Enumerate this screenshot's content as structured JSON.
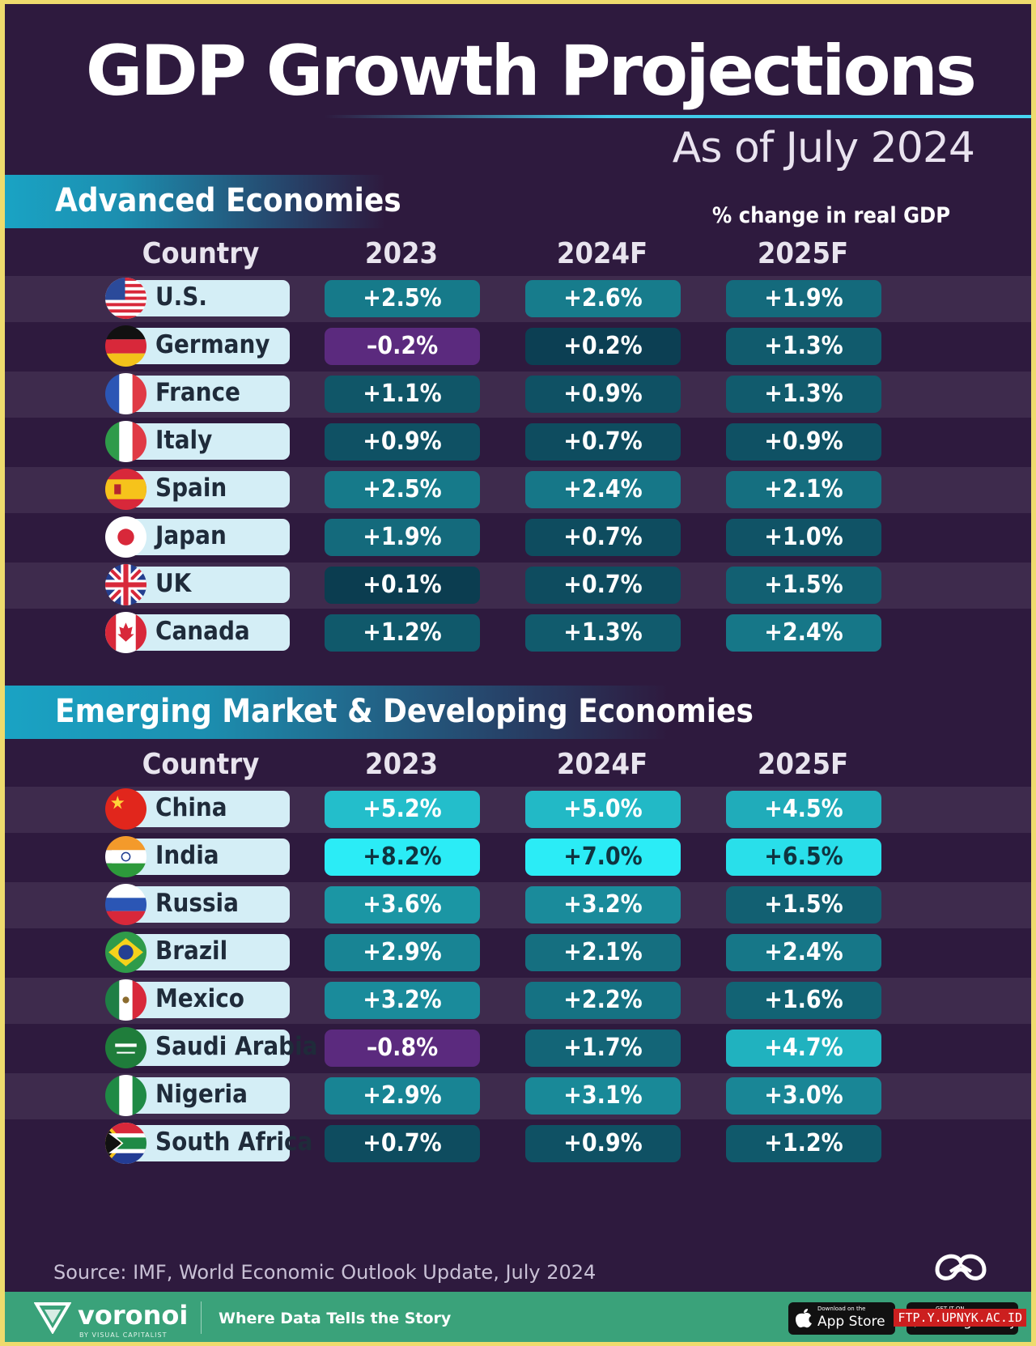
{
  "header": {
    "title": "GDP Growth Projections",
    "subtitle": "As of July 2024",
    "note": "% change in real GDP"
  },
  "footer": {
    "source": "Source: IMF, World Economic Outlook Update, July 2024",
    "brand": "voronoi",
    "brand_sub": "BY VISUAL CAPITALIST",
    "tagline": "Where Data Tells the Story",
    "app_store_small": "Download on the",
    "app_store": "App Store",
    "google_play_small": "GET IT ON",
    "google_play": "Google Play",
    "watermark": "FTP.Y.UPNYK.AC.ID"
  },
  "colors": {
    "background": "#2e1a3e",
    "accent": "#3fc9e8",
    "negative": "#5b2a7e",
    "low": "#0b3a4e",
    "high": "#2be6f4"
  },
  "chart_data": {
    "type": "table",
    "title": "GDP Growth Projections",
    "subtitle": "As of July 2024",
    "unit": "% change in real GDP",
    "columns": [
      "Country",
      "2023",
      "2024F",
      "2025F"
    ],
    "sections": [
      {
        "name": "Advanced Economies",
        "rows": [
          {
            "country": "U.S.",
            "flag": "us-flag-icon",
            "values": [
              2.5,
              2.6,
              1.9
            ],
            "labels": [
              "+2.5%",
              "+2.6%",
              "+1.9%"
            ]
          },
          {
            "country": "Germany",
            "flag": "germany-flag-icon",
            "values": [
              -0.2,
              0.2,
              1.3
            ],
            "labels": [
              "–0.2%",
              "+0.2%",
              "+1.3%"
            ]
          },
          {
            "country": "France",
            "flag": "france-flag-icon",
            "values": [
              1.1,
              0.9,
              1.3
            ],
            "labels": [
              "+1.1%",
              "+0.9%",
              "+1.3%"
            ]
          },
          {
            "country": "Italy",
            "flag": "italy-flag-icon",
            "values": [
              0.9,
              0.7,
              0.9
            ],
            "labels": [
              "+0.9%",
              "+0.7%",
              "+0.9%"
            ]
          },
          {
            "country": "Spain",
            "flag": "spain-flag-icon",
            "values": [
              2.5,
              2.4,
              2.1
            ],
            "labels": [
              "+2.5%",
              "+2.4%",
              "+2.1%"
            ]
          },
          {
            "country": "Japan",
            "flag": "japan-flag-icon",
            "values": [
              1.9,
              0.7,
              1.0
            ],
            "labels": [
              "+1.9%",
              "+0.7%",
              "+1.0%"
            ]
          },
          {
            "country": "UK",
            "flag": "uk-flag-icon",
            "values": [
              0.1,
              0.7,
              1.5
            ],
            "labels": [
              "+0.1%",
              "+0.7%",
              "+1.5%"
            ]
          },
          {
            "country": "Canada",
            "flag": "canada-flag-icon",
            "values": [
              1.2,
              1.3,
              2.4
            ],
            "labels": [
              "+1.2%",
              "+1.3%",
              "+2.4%"
            ]
          }
        ]
      },
      {
        "name": "Emerging Market & Developing Economies",
        "rows": [
          {
            "country": "China",
            "flag": "china-flag-icon",
            "values": [
              5.2,
              5.0,
              4.5
            ],
            "labels": [
              "+5.2%",
              "+5.0%",
              "+4.5%"
            ]
          },
          {
            "country": "India",
            "flag": "india-flag-icon",
            "values": [
              8.2,
              7.0,
              6.5
            ],
            "labels": [
              "+8.2%",
              "+7.0%",
              "+6.5%"
            ]
          },
          {
            "country": "Russia",
            "flag": "russia-flag-icon",
            "values": [
              3.6,
              3.2,
              1.5
            ],
            "labels": [
              "+3.6%",
              "+3.2%",
              "+1.5%"
            ]
          },
          {
            "country": "Brazil",
            "flag": "brazil-flag-icon",
            "values": [
              2.9,
              2.1,
              2.4
            ],
            "labels": [
              "+2.9%",
              "+2.1%",
              "+2.4%"
            ]
          },
          {
            "country": "Mexico",
            "flag": "mexico-flag-icon",
            "values": [
              3.2,
              2.2,
              1.6
            ],
            "labels": [
              "+3.2%",
              "+2.2%",
              "+1.6%"
            ]
          },
          {
            "country": "Saudi Arabia",
            "flag": "saudi-arabia-flag-icon",
            "values": [
              -0.8,
              1.7,
              4.7
            ],
            "labels": [
              "–0.8%",
              "+1.7%",
              "+4.7%"
            ]
          },
          {
            "country": "Nigeria",
            "flag": "nigeria-flag-icon",
            "values": [
              2.9,
              3.1,
              3.0
            ],
            "labels": [
              "+2.9%",
              "+3.1%",
              "+3.0%"
            ]
          },
          {
            "country": "South Africa",
            "flag": "south-africa-flag-icon",
            "values": [
              0.7,
              0.9,
              1.2
            ],
            "labels": [
              "+0.7%",
              "+0.9%",
              "+1.2%"
            ]
          }
        ]
      }
    ]
  }
}
